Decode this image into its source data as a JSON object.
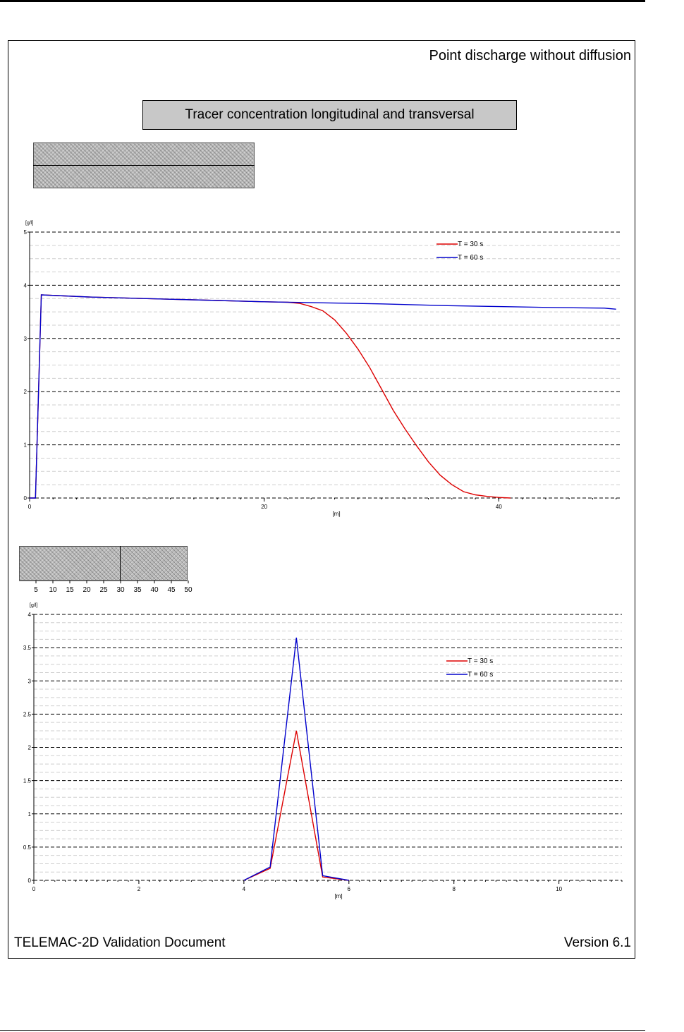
{
  "header": {
    "subtitle": "Point discharge without diffusion",
    "figure_title": "Tracer concentration longitudinal and transversal"
  },
  "footer": {
    "document": "TELEMAC-2D Validation Document",
    "version": "Version 6.1"
  },
  "colors": {
    "series_30s": "#dd0000",
    "series_60s": "#0000cc",
    "title_box": "#c8c8c8",
    "mesh": "#b8b8b8"
  },
  "mini_axis_ticks": [
    "5",
    "10",
    "15",
    "20",
    "25",
    "30",
    "35",
    "40",
    "45",
    "50"
  ],
  "chart_data": [
    {
      "type": "line",
      "title": "",
      "xlabel": "[m]",
      "ylabel": "[g/l]",
      "xlim": [
        0,
        50.5
      ],
      "ylim": [
        0,
        5
      ],
      "xticks": [
        0,
        20,
        40
      ],
      "yticks": [
        0,
        1,
        2,
        3,
        4,
        5
      ],
      "grid": true,
      "legend": "top-right",
      "series": [
        {
          "name": "T = 30 s",
          "x": [
            0,
            0.5,
            1,
            5,
            10,
            15,
            20,
            22,
            23,
            24,
            25,
            26,
            27,
            28,
            29,
            30,
            31,
            32,
            33,
            34,
            35,
            36,
            37,
            38,
            39,
            40,
            41
          ],
          "y": [
            0,
            0,
            3.82,
            3.78,
            3.75,
            3.72,
            3.69,
            3.68,
            3.66,
            3.6,
            3.52,
            3.35,
            3.1,
            2.8,
            2.45,
            2.05,
            1.65,
            1.3,
            0.98,
            0.68,
            0.43,
            0.25,
            0.12,
            0.06,
            0.03,
            0.01,
            0
          ]
        },
        {
          "name": "T = 60 s",
          "x": [
            0,
            0.5,
            1,
            5,
            10,
            15,
            20,
            25,
            30,
            35,
            40,
            45,
            49,
            50
          ],
          "y": [
            0,
            0,
            3.82,
            3.78,
            3.75,
            3.72,
            3.69,
            3.67,
            3.65,
            3.62,
            3.6,
            3.58,
            3.57,
            3.55
          ]
        }
      ]
    },
    {
      "type": "line",
      "title": "",
      "xlabel": "[m]",
      "ylabel": "[g/l]",
      "xlim": [
        0,
        11.2
      ],
      "ylim": [
        0,
        4
      ],
      "xticks": [
        0,
        2,
        4,
        6,
        8,
        10
      ],
      "yticks": [
        0,
        0.5,
        1,
        1.5,
        2,
        2.5,
        3,
        3.5,
        4
      ],
      "grid": true,
      "legend": "top-right",
      "series": [
        {
          "name": "T = 30 s",
          "x": [
            4,
            4.5,
            5,
            5.5,
            6
          ],
          "y": [
            0,
            0.18,
            2.25,
            0.05,
            0
          ]
        },
        {
          "name": "T = 60 s",
          "x": [
            4,
            4.5,
            5,
            5.5,
            6
          ],
          "y": [
            0,
            0.2,
            3.65,
            0.07,
            0
          ]
        }
      ]
    }
  ]
}
